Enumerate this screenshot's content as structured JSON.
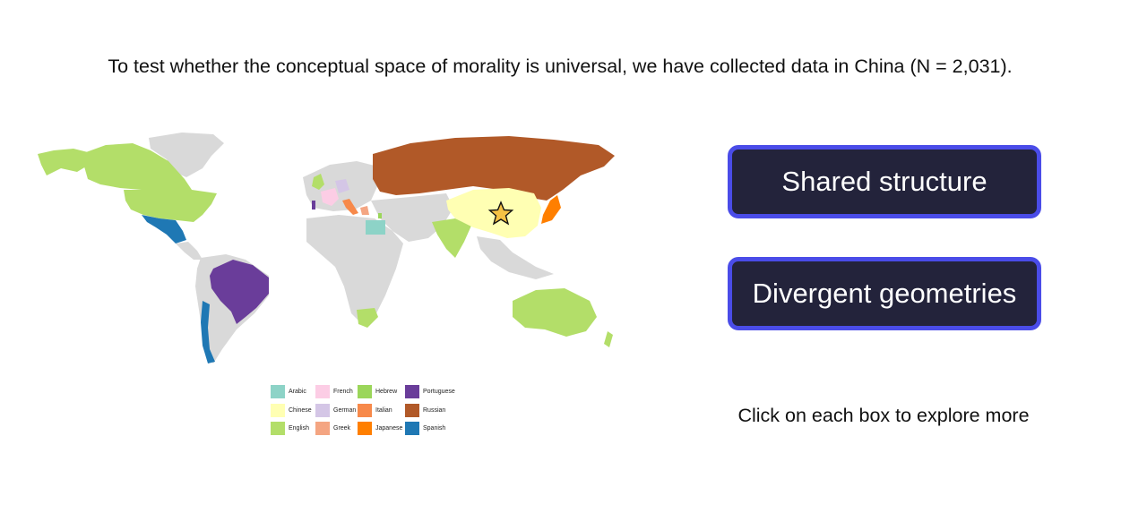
{
  "intro_text": "To test whether the conceptual space of morality is universal, we have collected data in China (N = 2,031).",
  "buttons": {
    "shared": "Shared structure",
    "divergent": "Divergent geometries"
  },
  "hint_text": "Click on each box to explore more",
  "map": {
    "highlighted_marker": "star-icon",
    "base_land_color": "#d9d9d9"
  },
  "legend": [
    {
      "label": "Arabic",
      "color": "#8dd3c7"
    },
    {
      "label": "Chinese",
      "color": "#ffffb3"
    },
    {
      "label": "English",
      "color": "#b3de69"
    },
    {
      "label": "French",
      "color": "#fccde5"
    },
    {
      "label": "German",
      "color": "#d4c6e6"
    },
    {
      "label": "Greek",
      "color": "#f4a582"
    },
    {
      "label": "Hebrew",
      "color": "#9bd65a"
    },
    {
      "label": "Italian",
      "color": "#f7894a"
    },
    {
      "label": "Japanese",
      "color": "#ff7f00"
    },
    {
      "label": "Portuguese",
      "color": "#6a3d9a"
    },
    {
      "label": "Russian",
      "color": "#b15928"
    },
    {
      "label": "Spanish",
      "color": "#1f78b4"
    }
  ]
}
